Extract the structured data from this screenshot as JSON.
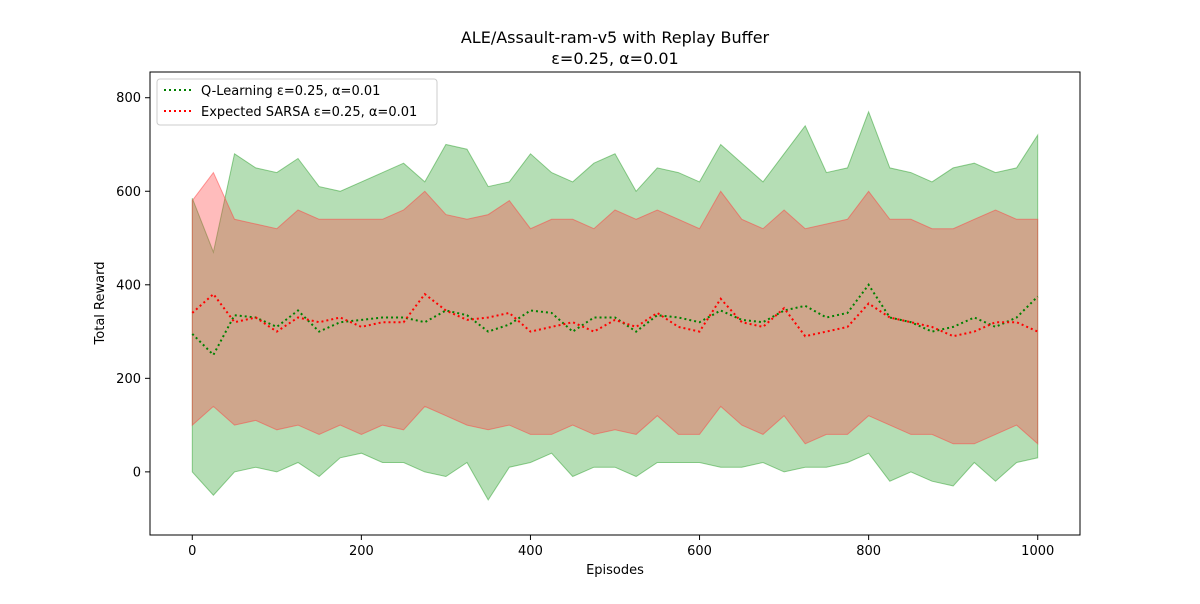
{
  "chart_data": {
    "type": "line",
    "title": "ALE/Assault-ram-v5 with Replay Buffer",
    "subtitle": "ε=0.25, α=0.01",
    "xlabel": "Episodes",
    "ylabel": "Total Reward",
    "xlim": [
      -50,
      1050
    ],
    "ylim": [
      -135,
      855
    ],
    "xticks": [
      0,
      200,
      400,
      600,
      800,
      1000
    ],
    "yticks": [
      0,
      200,
      400,
      600,
      800
    ],
    "grid": false,
    "legend_position": "top-left",
    "band_type": "shaded band around mean (approximate)",
    "x": [
      0,
      25,
      50,
      75,
      100,
      125,
      150,
      175,
      200,
      225,
      250,
      275,
      300,
      325,
      350,
      375,
      400,
      425,
      450,
      475,
      500,
      525,
      550,
      575,
      600,
      625,
      650,
      675,
      700,
      725,
      750,
      775,
      800,
      825,
      850,
      875,
      900,
      925,
      950,
      975,
      1000
    ],
    "series": [
      {
        "name": "Q-Learning ε=0.25, α=0.01",
        "color": "#008000",
        "band_color": "#2ca02c",
        "line_style": "dotted",
        "mean": [
          295,
          250,
          335,
          330,
          310,
          345,
          300,
          320,
          325,
          330,
          330,
          320,
          345,
          335,
          300,
          315,
          345,
          340,
          300,
          330,
          330,
          300,
          335,
          330,
          320,
          345,
          325,
          320,
          345,
          355,
          330,
          340,
          400,
          330,
          320,
          300,
          310,
          330,
          310,
          330,
          375
        ],
        "upper": [
          585,
          470,
          680,
          650,
          640,
          670,
          610,
          600,
          620,
          640,
          660,
          620,
          700,
          690,
          610,
          620,
          680,
          640,
          620,
          660,
          680,
          600,
          650,
          640,
          620,
          700,
          660,
          620,
          680,
          740,
          640,
          650,
          770,
          650,
          640,
          620,
          650,
          660,
          640,
          650,
          720
        ],
        "lower": [
          0,
          -50,
          0,
          10,
          0,
          20,
          -10,
          30,
          40,
          20,
          20,
          0,
          -10,
          20,
          -60,
          10,
          20,
          40,
          -10,
          10,
          10,
          -10,
          20,
          20,
          20,
          10,
          10,
          20,
          0,
          10,
          10,
          20,
          40,
          -20,
          0,
          -20,
          -30,
          20,
          -20,
          20,
          30
        ]
      },
      {
        "name": "Expected SARSA ε=0.25, α=0.01",
        "color": "#ff0000",
        "band_color": "#ff4040",
        "line_style": "dotted",
        "mean": [
          340,
          380,
          320,
          330,
          300,
          330,
          320,
          330,
          310,
          320,
          320,
          380,
          345,
          325,
          330,
          340,
          300,
          310,
          320,
          300,
          325,
          310,
          340,
          310,
          300,
          370,
          320,
          310,
          350,
          290,
          300,
          310,
          360,
          330,
          320,
          310,
          290,
          300,
          320,
          320,
          300
        ],
        "upper": [
          580,
          640,
          540,
          530,
          520,
          560,
          540,
          540,
          540,
          540,
          560,
          600,
          550,
          540,
          550,
          580,
          520,
          540,
          540,
          520,
          560,
          540,
          560,
          540,
          520,
          600,
          540,
          520,
          560,
          520,
          530,
          540,
          600,
          540,
          540,
          520,
          520,
          540,
          560,
          540,
          540
        ],
        "lower": [
          100,
          140,
          100,
          110,
          90,
          100,
          80,
          100,
          80,
          100,
          90,
          140,
          120,
          100,
          90,
          100,
          80,
          80,
          100,
          80,
          90,
          80,
          120,
          80,
          80,
          140,
          100,
          80,
          120,
          60,
          80,
          80,
          120,
          100,
          80,
          80,
          60,
          60,
          80,
          100,
          60
        ]
      }
    ]
  }
}
